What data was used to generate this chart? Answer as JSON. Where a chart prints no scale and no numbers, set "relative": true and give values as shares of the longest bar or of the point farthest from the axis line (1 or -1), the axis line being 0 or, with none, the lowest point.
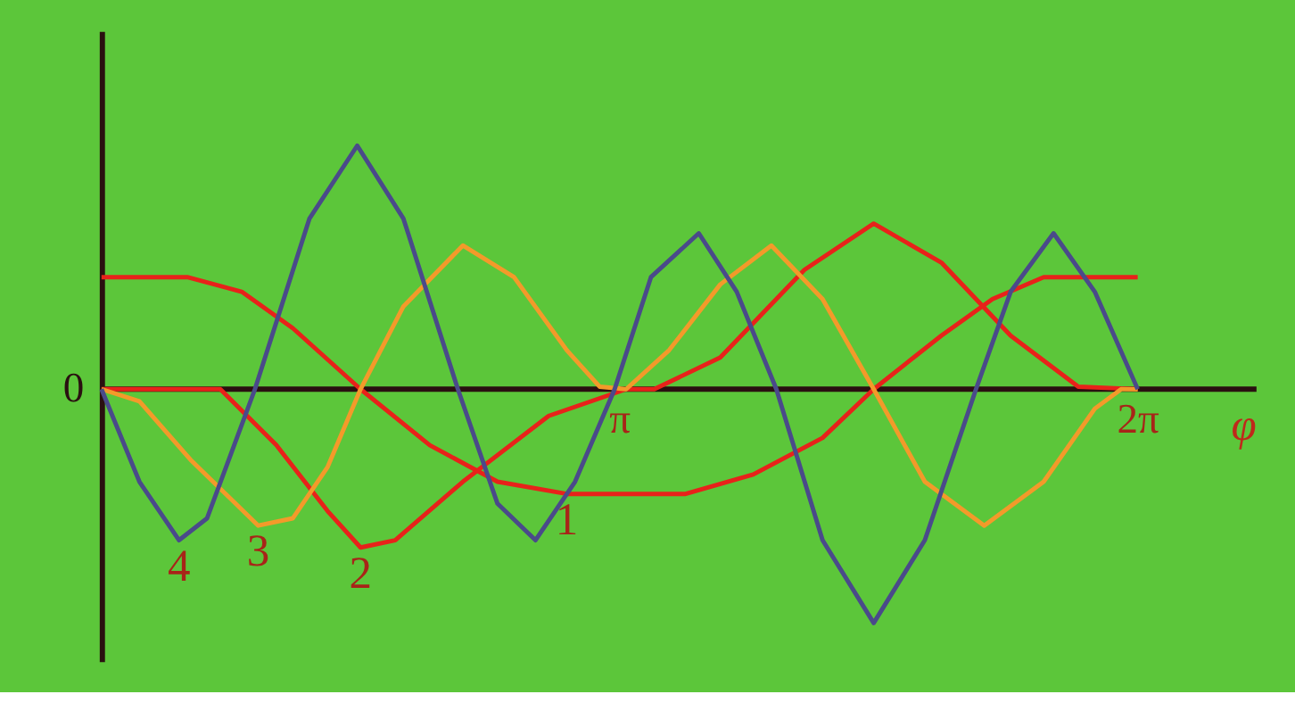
{
  "chart_data": {
    "type": "line",
    "relative": true,
    "xlabel": "φ",
    "xlim": [
      0,
      7.0
    ],
    "annotations": [
      "0"
    ],
    "xticks": [
      {
        "value": 3.1416,
        "label": "π"
      },
      {
        "value": 6.2832,
        "label": "2π"
      }
    ],
    "grid": false,
    "series": [
      {
        "name": "1",
        "color": "#e8221a",
        "x": [
          0,
          0.52,
          0.85,
          1.16,
          1.57,
          1.99,
          2.4,
          2.82,
          3.54,
          3.95,
          4.37,
          4.68,
          5.09,
          5.4,
          5.71,
          6.28
        ],
        "values": [
          0.46,
          0.46,
          0.4,
          0.25,
          0,
          -0.23,
          -0.38,
          -0.43,
          -0.43,
          -0.35,
          -0.2,
          0,
          0.22,
          0.37,
          0.46,
          0.46
        ]
      },
      {
        "name": "2",
        "color": "#e8221a",
        "x": [
          0,
          0.72,
          1.06,
          1.37,
          1.57,
          1.78,
          2.19,
          2.71,
          3.18,
          3.35,
          3.75,
          4.26,
          4.68,
          5.09,
          5.51,
          5.92,
          6.28
        ],
        "values": [
          0,
          0,
          -0.23,
          -0.5,
          -0.65,
          -0.62,
          -0.38,
          -0.11,
          0,
          0,
          0.13,
          0.49,
          0.68,
          0.52,
          0.22,
          0.01,
          0
        ]
      },
      {
        "name": "3",
        "color": "#f39a2a",
        "x": [
          0,
          0.23,
          0.54,
          0.95,
          1.16,
          1.37,
          1.57,
          1.83,
          2.19,
          2.5,
          2.82,
          3.02,
          3.18,
          3.44,
          3.75,
          4.06,
          4.37,
          4.68,
          4.99,
          5.35,
          5.71,
          6.02,
          6.18,
          6.28
        ],
        "values": [
          0,
          -0.05,
          -0.29,
          -0.56,
          -0.53,
          -0.32,
          0,
          0.34,
          0.59,
          0.46,
          0.16,
          0.01,
          0,
          0.16,
          0.43,
          0.59,
          0.37,
          0,
          -0.38,
          -0.56,
          -0.38,
          -0.08,
          0,
          0
        ]
      },
      {
        "name": "4",
        "color": "#4a4a8a",
        "x": [
          0,
          0.23,
          0.47,
          0.64,
          0.93,
          1.26,
          1.55,
          1.83,
          2.16,
          2.4,
          2.63,
          2.87,
          3.11,
          3.33,
          3.62,
          3.85,
          4.09,
          4.37,
          4.68,
          4.99,
          5.3,
          5.51,
          5.77,
          6.02,
          6.28
        ],
        "values": [
          0,
          -0.38,
          -0.62,
          -0.53,
          0,
          0.7,
          1.0,
          0.7,
          0,
          -0.47,
          -0.62,
          -0.38,
          0,
          0.46,
          0.64,
          0.4,
          0,
          -0.62,
          -0.96,
          -0.62,
          0,
          0.4,
          0.64,
          0.4,
          0
        ]
      }
    ]
  }
}
